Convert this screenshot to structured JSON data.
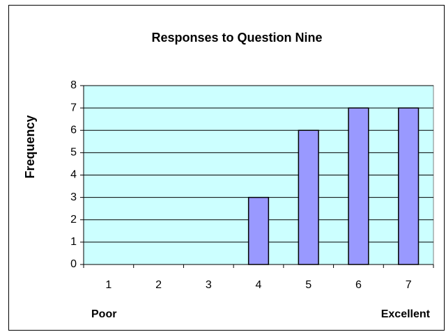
{
  "chart_data": {
    "type": "bar",
    "title": "Responses to Question Nine",
    "y_label": "Frequency",
    "categories": [
      "1",
      "2",
      "3",
      "4",
      "5",
      "6",
      "7"
    ],
    "values": [
      0,
      0,
      0,
      3,
      6,
      7,
      7
    ],
    "color": "#9999ff",
    "ylim": [
      0,
      8
    ],
    "yticks": [
      0,
      1,
      2,
      3,
      4,
      5,
      6,
      7,
      8
    ],
    "grid": true,
    "annotations": [
      "Poor",
      "Excellent"
    ]
  }
}
